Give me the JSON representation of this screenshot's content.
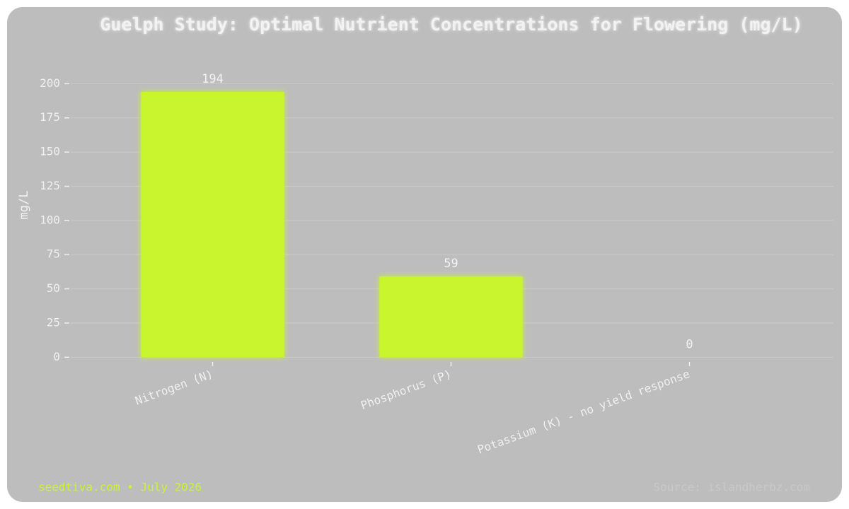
{
  "chart_data": {
    "type": "bar",
    "title": "Guelph Study: Optimal Nutrient Concentrations for Flowering (mg/L)",
    "y_label": "mg/L",
    "categories": [
      "Nitrogen (N)",
      "Phosphorus (P)",
      "Potassium (K) - no yield response"
    ],
    "values": [
      194,
      59,
      0
    ],
    "color": "#c8f52e",
    "ylim": [
      -5,
      225
    ],
    "yticks": [
      0,
      25,
      50,
      75,
      100,
      125,
      150,
      175,
      200
    ],
    "grid": true
  },
  "footer": {
    "left": "seedtiva.com • July 2026",
    "source": "Source: islandherbz.com"
  }
}
